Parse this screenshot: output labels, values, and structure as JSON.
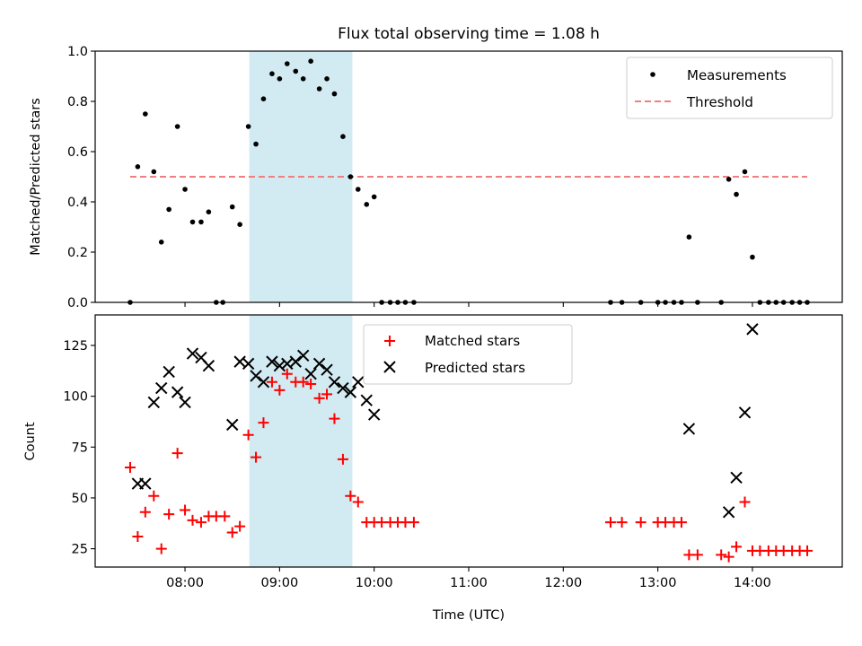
{
  "chart_data": [
    {
      "type": "scatter",
      "title": "Flux total observing time = 1.08 h",
      "xlabel": "",
      "ylabel": "Matched/Predicted stars",
      "xlim": [
        7.05,
        14.95
      ],
      "ylim": [
        0.0,
        1.0
      ],
      "yticks": [
        0.0,
        0.2,
        0.4,
        0.6,
        0.8,
        1.0
      ],
      "ytick_labels": [
        "0.0",
        "0.2",
        "0.4",
        "0.6",
        "0.8",
        "1.0"
      ],
      "shaded_interval": [
        8.68,
        9.77
      ],
      "legend_position": "upper right",
      "series": [
        {
          "name": "Measurements",
          "marker": "dot",
          "color": "#000000",
          "points": [
            [
              7.42,
              0.0
            ],
            [
              7.5,
              0.54
            ],
            [
              7.58,
              0.75
            ],
            [
              7.67,
              0.52
            ],
            [
              7.75,
              0.24
            ],
            [
              7.83,
              0.37
            ],
            [
              7.92,
              0.7
            ],
            [
              8.0,
              0.45
            ],
            [
              8.08,
              0.32
            ],
            [
              8.17,
              0.32
            ],
            [
              8.25,
              0.36
            ],
            [
              8.33,
              0.0
            ],
            [
              8.4,
              0.0
            ],
            [
              8.5,
              0.38
            ],
            [
              8.58,
              0.31
            ],
            [
              8.67,
              0.7
            ],
            [
              8.75,
              0.63
            ],
            [
              8.83,
              0.81
            ],
            [
              8.92,
              0.91
            ],
            [
              9.0,
              0.89
            ],
            [
              9.08,
              0.95
            ],
            [
              9.17,
              0.92
            ],
            [
              9.25,
              0.89
            ],
            [
              9.33,
              0.96
            ],
            [
              9.42,
              0.85
            ],
            [
              9.5,
              0.89
            ],
            [
              9.58,
              0.83
            ],
            [
              9.67,
              0.66
            ],
            [
              9.75,
              0.5
            ],
            [
              9.83,
              0.45
            ],
            [
              9.92,
              0.39
            ],
            [
              10.0,
              0.42
            ],
            [
              10.08,
              0.0
            ],
            [
              10.17,
              0.0
            ],
            [
              10.25,
              0.0
            ],
            [
              10.33,
              0.0
            ],
            [
              10.42,
              0.0
            ],
            [
              12.5,
              0.0
            ],
            [
              12.62,
              0.0
            ],
            [
              12.82,
              0.0
            ],
            [
              13.0,
              0.0
            ],
            [
              13.08,
              0.0
            ],
            [
              13.17,
              0.0
            ],
            [
              13.25,
              0.0
            ],
            [
              13.33,
              0.26
            ],
            [
              13.42,
              0.0
            ],
            [
              13.67,
              0.0
            ],
            [
              13.75,
              0.49
            ],
            [
              13.83,
              0.43
            ],
            [
              13.92,
              0.52
            ],
            [
              14.0,
              0.18
            ],
            [
              14.08,
              0.0
            ],
            [
              14.17,
              0.0
            ],
            [
              14.25,
              0.0
            ],
            [
              14.33,
              0.0
            ],
            [
              14.42,
              0.0
            ],
            [
              14.5,
              0.0
            ],
            [
              14.58,
              0.0
            ]
          ]
        },
        {
          "name": "Threshold",
          "marker": "dashed-line",
          "color": "#f08080",
          "points": [
            [
              7.42,
              0.5
            ],
            [
              14.58,
              0.5
            ]
          ]
        }
      ]
    },
    {
      "type": "scatter",
      "title": "",
      "xlabel": "Time (UTC)",
      "ylabel": "Count",
      "xlim": [
        7.05,
        14.95
      ],
      "ylim": [
        16,
        140
      ],
      "yticks": [
        25,
        50,
        75,
        100,
        125
      ],
      "ytick_labels": [
        "25",
        "50",
        "75",
        "100",
        "125"
      ],
      "xticks": [
        8,
        9,
        10,
        11,
        12,
        13,
        14
      ],
      "xtick_labels": [
        "08:00",
        "09:00",
        "10:00",
        "11:00",
        "12:00",
        "13:00",
        "14:00"
      ],
      "shaded_interval": [
        8.68,
        9.77
      ],
      "legend_position": "upper center",
      "series": [
        {
          "name": "Matched stars",
          "marker": "plus",
          "color": "#ff0000",
          "points": [
            [
              7.42,
              65
            ],
            [
              7.5,
              31
            ],
            [
              7.58,
              43
            ],
            [
              7.67,
              51
            ],
            [
              7.75,
              25
            ],
            [
              7.83,
              42
            ],
            [
              7.92,
              72
            ],
            [
              8.0,
              44
            ],
            [
              8.08,
              39
            ],
            [
              8.17,
              38
            ],
            [
              8.25,
              41
            ],
            [
              8.33,
              41
            ],
            [
              8.42,
              41
            ],
            [
              8.5,
              33
            ],
            [
              8.58,
              36
            ],
            [
              8.67,
              81
            ],
            [
              8.75,
              70
            ],
            [
              8.83,
              87
            ],
            [
              8.92,
              107
            ],
            [
              9.0,
              103
            ],
            [
              9.08,
              111
            ],
            [
              9.17,
              107
            ],
            [
              9.25,
              107
            ],
            [
              9.33,
              106
            ],
            [
              9.42,
              99
            ],
            [
              9.5,
              101
            ],
            [
              9.58,
              89
            ],
            [
              9.67,
              69
            ],
            [
              9.75,
              51
            ],
            [
              9.83,
              48
            ],
            [
              9.92,
              38
            ],
            [
              10.0,
              38
            ],
            [
              10.08,
              38
            ],
            [
              10.17,
              38
            ],
            [
              10.25,
              38
            ],
            [
              10.33,
              38
            ],
            [
              10.42,
              38
            ],
            [
              12.5,
              38
            ],
            [
              12.62,
              38
            ],
            [
              12.82,
              38
            ],
            [
              13.0,
              38
            ],
            [
              13.08,
              38
            ],
            [
              13.17,
              38
            ],
            [
              13.25,
              38
            ],
            [
              13.33,
              22
            ],
            [
              13.42,
              22
            ],
            [
              13.67,
              22
            ],
            [
              13.75,
              21
            ],
            [
              13.83,
              26
            ],
            [
              13.92,
              48
            ],
            [
              14.0,
              24
            ],
            [
              14.08,
              24
            ],
            [
              14.17,
              24
            ],
            [
              14.25,
              24
            ],
            [
              14.33,
              24
            ],
            [
              14.42,
              24
            ],
            [
              14.5,
              24
            ],
            [
              14.58,
              24
            ]
          ]
        },
        {
          "name": "Predicted stars",
          "marker": "x",
          "color": "#000000",
          "points": [
            [
              7.5,
              57
            ],
            [
              7.58,
              57
            ],
            [
              7.67,
              97
            ],
            [
              7.75,
              104
            ],
            [
              7.83,
              112
            ],
            [
              7.92,
              102
            ],
            [
              8.0,
              97
            ],
            [
              8.08,
              121
            ],
            [
              8.17,
              119
            ],
            [
              8.25,
              115
            ],
            [
              8.5,
              86
            ],
            [
              8.58,
              117
            ],
            [
              8.67,
              116
            ],
            [
              8.75,
              110
            ],
            [
              8.83,
              107
            ],
            [
              8.92,
              117
            ],
            [
              9.0,
              115
            ],
            [
              9.08,
              116
            ],
            [
              9.17,
              117
            ],
            [
              9.25,
              120
            ],
            [
              9.33,
              111
            ],
            [
              9.42,
              116
            ],
            [
              9.5,
              113
            ],
            [
              9.58,
              107
            ],
            [
              9.67,
              104
            ],
            [
              9.75,
              102
            ],
            [
              9.83,
              107
            ],
            [
              9.92,
              98
            ],
            [
              10.0,
              91
            ],
            [
              13.33,
              84
            ],
            [
              13.75,
              43
            ],
            [
              13.83,
              60
            ],
            [
              13.92,
              92
            ],
            [
              14.0,
              133
            ]
          ]
        }
      ]
    }
  ]
}
